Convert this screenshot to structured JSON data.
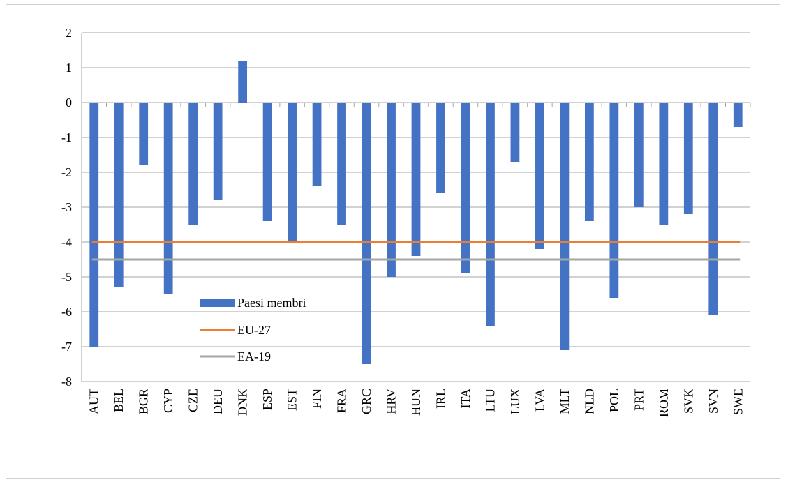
{
  "chart_data": {
    "type": "bar",
    "categories": [
      "AUT",
      "BEL",
      "BGR",
      "CYP",
      "CZE",
      "DEU",
      "DNK",
      "ESP",
      "EST",
      "FIN",
      "FRA",
      "GRC",
      "HRV",
      "HUN",
      "IRL",
      "ITA",
      "LTU",
      "LUX",
      "LVA",
      "MLT",
      "NLD",
      "POL",
      "PRT",
      "ROM",
      "SVK",
      "SVN",
      "SWE"
    ],
    "series": [
      {
        "name": "Paesi membri",
        "kind": "bar",
        "color": "#4472C4",
        "values": [
          -7.0,
          -5.3,
          -1.8,
          -5.5,
          -3.5,
          -2.8,
          1.2,
          -3.4,
          -4.0,
          -2.4,
          -3.5,
          -7.5,
          -5.0,
          -4.4,
          -2.6,
          -4.9,
          -6.4,
          -1.7,
          -4.2,
          -7.1,
          -3.4,
          -5.6,
          -3.0,
          -3.5,
          -3.2,
          -6.1,
          -0.7
        ]
      },
      {
        "name": "EU-27",
        "kind": "line",
        "color": "#ED7D31",
        "value": -4.0
      },
      {
        "name": "EA-19",
        "kind": "line",
        "color": "#A5A5A5",
        "value": -4.5
      }
    ],
    "ylim": [
      -8,
      2
    ],
    "yticks": [
      2,
      1,
      0,
      -1,
      -2,
      -3,
      -4,
      -5,
      -6,
      -7,
      -8
    ],
    "title": "",
    "xlabel": "",
    "ylabel": "",
    "grid": true,
    "legend_position": "inside-bottom-left",
    "gridline_color": "#A6A6A6",
    "axis_color": "#A6A6A6"
  }
}
